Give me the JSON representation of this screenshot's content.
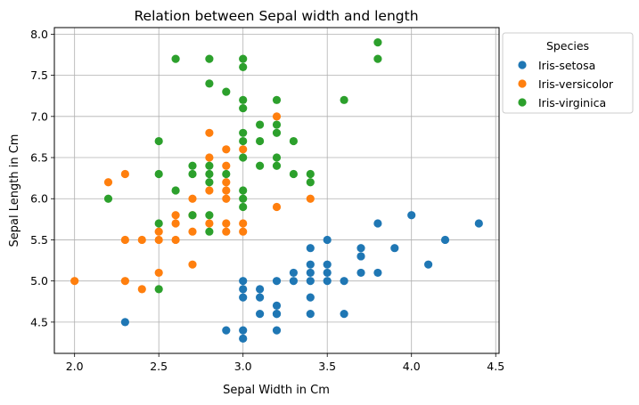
{
  "chart_data": {
    "type": "scatter",
    "title": "Relation between Sepal width and length",
    "xlabel": "Sepal Width in Cm",
    "ylabel": "Sepal Length in Cm",
    "xlim": [
      1.88,
      4.52
    ],
    "ylim": [
      4.12,
      8.08
    ],
    "xticks": [
      "2.0",
      "2.5",
      "3.0",
      "3.5",
      "4.0",
      "4.5"
    ],
    "yticks": [
      "4.5",
      "5.0",
      "5.5",
      "6.0",
      "6.5",
      "7.0",
      "7.5",
      "8.0"
    ],
    "grid": true,
    "legend": {
      "title": "Species",
      "placement": "outside-right-top"
    },
    "series": [
      {
        "name": "Iris-setosa",
        "color": "#1f77b4",
        "points": [
          [
            2.3,
            4.5
          ],
          [
            2.9,
            4.4
          ],
          [
            3.0,
            4.3
          ],
          [
            3.0,
            4.4
          ],
          [
            3.2,
            4.4
          ],
          [
            3.0,
            4.8
          ],
          [
            3.0,
            4.9
          ],
          [
            3.0,
            5.0
          ],
          [
            3.1,
            4.9
          ],
          [
            3.1,
            4.8
          ],
          [
            3.1,
            4.6
          ],
          [
            3.2,
            4.6
          ],
          [
            3.2,
            4.7
          ],
          [
            3.2,
            4.6
          ],
          [
            3.2,
            5.0
          ],
          [
            3.3,
            5.0
          ],
          [
            3.3,
            5.1
          ],
          [
            3.4,
            4.6
          ],
          [
            3.4,
            4.8
          ],
          [
            3.4,
            5.0
          ],
          [
            3.4,
            5.1
          ],
          [
            3.4,
            5.2
          ],
          [
            3.4,
            5.4
          ],
          [
            3.5,
            5.0
          ],
          [
            3.5,
            5.1
          ],
          [
            3.5,
            5.2
          ],
          [
            3.5,
            5.5
          ],
          [
            3.6,
            5.0
          ],
          [
            3.6,
            4.6
          ],
          [
            3.7,
            5.1
          ],
          [
            3.7,
            5.3
          ],
          [
            3.7,
            5.4
          ],
          [
            3.8,
            5.1
          ],
          [
            3.8,
            5.7
          ],
          [
            3.9,
            5.4
          ],
          [
            4.0,
            5.8
          ],
          [
            4.1,
            5.2
          ],
          [
            4.2,
            5.5
          ],
          [
            4.4,
            5.7
          ]
        ]
      },
      {
        "name": "Iris-versicolor",
        "color": "#ff7f0e",
        "points": [
          [
            2.0,
            5.0
          ],
          [
            2.2,
            6.2
          ],
          [
            2.3,
            6.3
          ],
          [
            2.3,
            5.5
          ],
          [
            2.3,
            5.0
          ],
          [
            2.4,
            5.5
          ],
          [
            2.4,
            4.9
          ],
          [
            2.5,
            5.5
          ],
          [
            2.5,
            5.6
          ],
          [
            2.5,
            5.1
          ],
          [
            2.6,
            5.5
          ],
          [
            2.6,
            5.7
          ],
          [
            2.6,
            5.8
          ],
          [
            2.7,
            5.2
          ],
          [
            2.7,
            5.6
          ],
          [
            2.7,
            5.8
          ],
          [
            2.7,
            6.0
          ],
          [
            2.8,
            5.7
          ],
          [
            2.8,
            6.1
          ],
          [
            2.8,
            6.5
          ],
          [
            2.8,
            6.8
          ],
          [
            2.9,
            5.6
          ],
          [
            2.9,
            5.7
          ],
          [
            2.9,
            6.0
          ],
          [
            2.9,
            6.1
          ],
          [
            2.9,
            6.2
          ],
          [
            2.9,
            6.4
          ],
          [
            2.9,
            6.6
          ],
          [
            3.0,
            5.6
          ],
          [
            3.0,
            5.7
          ],
          [
            3.0,
            6.6
          ],
          [
            3.2,
            5.9
          ],
          [
            3.2,
            7.0
          ],
          [
            3.4,
            6.0
          ]
        ]
      },
      {
        "name": "Iris-virginica",
        "color": "#2ca02c",
        "points": [
          [
            2.2,
            6.0
          ],
          [
            2.5,
            4.9
          ],
          [
            2.5,
            5.7
          ],
          [
            2.5,
            6.3
          ],
          [
            2.5,
            6.7
          ],
          [
            2.6,
            6.1
          ],
          [
            2.6,
            7.7
          ],
          [
            2.7,
            5.8
          ],
          [
            2.7,
            6.3
          ],
          [
            2.7,
            6.4
          ],
          [
            2.8,
            5.6
          ],
          [
            2.8,
            5.8
          ],
          [
            2.8,
            6.2
          ],
          [
            2.8,
            6.3
          ],
          [
            2.8,
            6.4
          ],
          [
            2.8,
            7.4
          ],
          [
            2.8,
            7.7
          ],
          [
            2.9,
            6.3
          ],
          [
            2.9,
            7.3
          ],
          [
            3.0,
            5.9
          ],
          [
            3.0,
            6.0
          ],
          [
            3.0,
            6.1
          ],
          [
            3.0,
            6.5
          ],
          [
            3.0,
            6.7
          ],
          [
            3.0,
            6.8
          ],
          [
            3.0,
            7.1
          ],
          [
            3.0,
            7.2
          ],
          [
            3.0,
            7.6
          ],
          [
            3.0,
            7.7
          ],
          [
            3.1,
            6.4
          ],
          [
            3.1,
            6.7
          ],
          [
            3.1,
            6.9
          ],
          [
            3.2,
            6.4
          ],
          [
            3.2,
            6.5
          ],
          [
            3.2,
            6.8
          ],
          [
            3.2,
            6.9
          ],
          [
            3.2,
            7.2
          ],
          [
            3.3,
            6.3
          ],
          [
            3.3,
            6.7
          ],
          [
            3.4,
            6.2
          ],
          [
            3.4,
            6.3
          ],
          [
            3.6,
            7.2
          ],
          [
            3.8,
            7.7
          ],
          [
            3.8,
            7.9
          ]
        ]
      }
    ]
  }
}
